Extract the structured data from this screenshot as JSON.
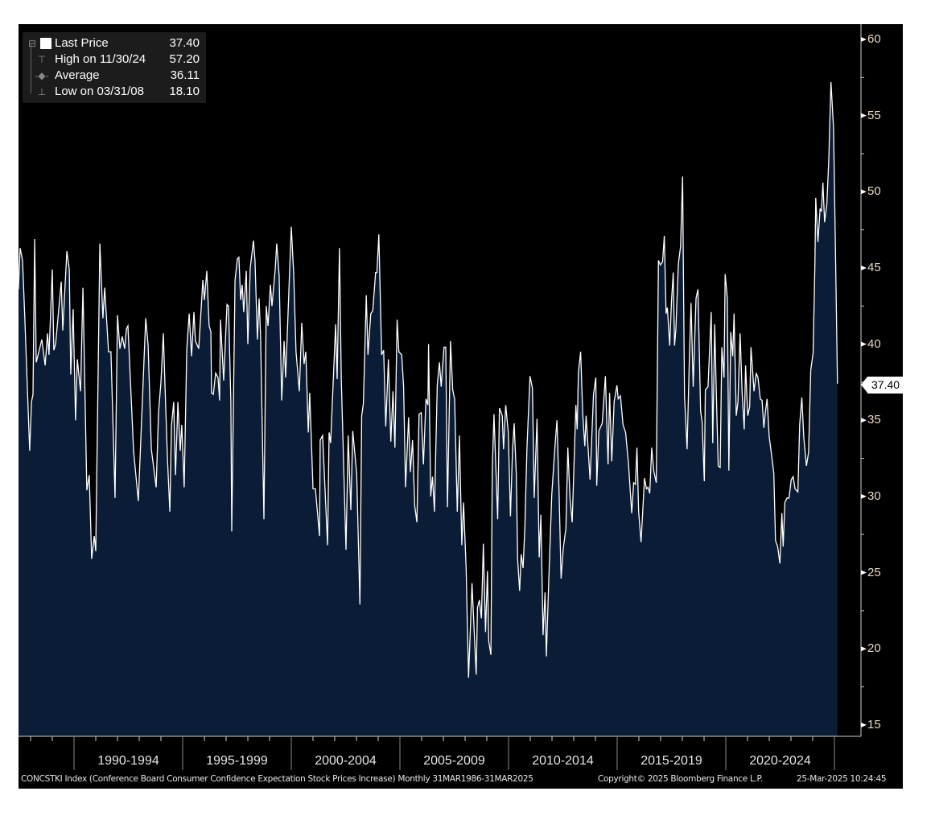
{
  "legend": {
    "last_label": "Last Price",
    "last_value": "37.40",
    "high_label": "High on 11/30/24",
    "high_value": "57.20",
    "avg_label": "Average",
    "avg_value": "36.11",
    "low_label": "Low on 03/31/08",
    "low_value": "18.10"
  },
  "last_tag": "37.40",
  "footer": {
    "description": "CONCSTKI Index (Conference Board Consumer Confidence Expectation Stock Prices Increase)  Monthly 31MAR1986-31MAR2025",
    "copyright": "Copyright© 2025 Bloomberg Finance L.P.",
    "timestamp": "25-Mar-2025 10:24:45"
  },
  "colors": {
    "area": "#0b1d36",
    "line": "#ffffff",
    "background": "#000000",
    "axis_text": "#e9d9c2"
  },
  "chart_data": {
    "type": "area",
    "title": "CONCSTKI Index",
    "ylim": [
      15,
      60
    ],
    "y_ticks": [
      "15",
      "20",
      "25",
      "30",
      "35",
      "40",
      "45",
      "50",
      "55",
      "60"
    ],
    "x_periods": [
      "1990-1994",
      "1995-1999",
      "2000-2004",
      "2005-2009",
      "2010-2014",
      "2015-2019",
      "2020-2024"
    ],
    "x_range": [
      1987.44,
      2025.2
    ],
    "points": [
      [
        1987.44,
        43.6
      ],
      [
        1987.52,
        46.3
      ],
      [
        1987.63,
        45.5
      ],
      [
        1987.74,
        41.5
      ],
      [
        1987.78,
        39.9
      ],
      [
        1987.93,
        34.1
      ],
      [
        1987.96,
        33.0
      ],
      [
        1988.04,
        36.2
      ],
      [
        1988.11,
        36.7
      ],
      [
        1988.19,
        46.9
      ],
      [
        1988.26,
        38.8
      ],
      [
        1988.52,
        40.3
      ],
      [
        1988.67,
        38.6
      ],
      [
        1988.78,
        40.7
      ],
      [
        1988.85,
        39.3
      ],
      [
        1989.0,
        44.9
      ],
      [
        1989.07,
        39.6
      ],
      [
        1989.15,
        40.0
      ],
      [
        1989.41,
        44.1
      ],
      [
        1989.48,
        40.9
      ],
      [
        1989.67,
        46.1
      ],
      [
        1989.78,
        44.9
      ],
      [
        1989.85,
        38.0
      ],
      [
        1989.96,
        42.3
      ],
      [
        1990.07,
        35.0
      ],
      [
        1990.15,
        39.0
      ],
      [
        1990.3,
        36.9
      ],
      [
        1990.41,
        43.7
      ],
      [
        1990.59,
        30.4
      ],
      [
        1990.7,
        31.4
      ],
      [
        1990.81,
        25.9
      ],
      [
        1990.93,
        27.4
      ],
      [
        1991.0,
        26.4
      ],
      [
        1991.19,
        46.6
      ],
      [
        1991.33,
        41.7
      ],
      [
        1991.41,
        43.7
      ],
      [
        1991.59,
        39.5
      ],
      [
        1991.7,
        39.5
      ],
      [
        1991.89,
        29.9
      ],
      [
        1992.0,
        41.9
      ],
      [
        1992.11,
        39.7
      ],
      [
        1992.22,
        40.5
      ],
      [
        1992.33,
        39.7
      ],
      [
        1992.41,
        41.0
      ],
      [
        1992.48,
        41.2
      ],
      [
        1992.74,
        33.0
      ],
      [
        1992.96,
        29.7
      ],
      [
        1993.19,
        37.8
      ],
      [
        1993.3,
        41.7
      ],
      [
        1993.41,
        39.9
      ],
      [
        1993.56,
        33.1
      ],
      [
        1993.78,
        30.6
      ],
      [
        1993.89,
        35.5
      ],
      [
        1994.0,
        37.5
      ],
      [
        1994.11,
        40.7
      ],
      [
        1994.19,
        37.2
      ],
      [
        1994.3,
        32.5
      ],
      [
        1994.41,
        29.0
      ],
      [
        1994.48,
        34.6
      ],
      [
        1994.59,
        36.2
      ],
      [
        1994.67,
        31.4
      ],
      [
        1994.78,
        36.2
      ],
      [
        1994.89,
        33.0
      ],
      [
        1994.96,
        34.7
      ],
      [
        1995.07,
        30.6
      ],
      [
        1995.19,
        39.6
      ],
      [
        1995.3,
        42.0
      ],
      [
        1995.41,
        39.2
      ],
      [
        1995.52,
        42.1
      ],
      [
        1995.59,
        40.2
      ],
      [
        1995.74,
        39.7
      ],
      [
        1995.93,
        44.2
      ],
      [
        1996.0,
        42.9
      ],
      [
        1996.11,
        44.8
      ],
      [
        1996.22,
        41.2
      ],
      [
        1996.3,
        40.8
      ],
      [
        1996.33,
        36.8
      ],
      [
        1996.41,
        36.7
      ],
      [
        1996.52,
        38.1
      ],
      [
        1996.63,
        37.8
      ],
      [
        1996.7,
        36.3
      ],
      [
        1996.74,
        41.6
      ],
      [
        1996.89,
        37.6
      ],
      [
        1997.04,
        42.6
      ],
      [
        1997.11,
        42.5
      ],
      [
        1997.22,
        36.2
      ],
      [
        1997.26,
        27.7
      ],
      [
        1997.41,
        44.2
      ],
      [
        1997.52,
        45.6
      ],
      [
        1997.59,
        45.7
      ],
      [
        1997.67,
        42.9
      ],
      [
        1997.74,
        43.9
      ],
      [
        1997.81,
        42.1
      ],
      [
        1997.93,
        44.8
      ],
      [
        1998.0,
        40.0
      ],
      [
        1998.11,
        45.0
      ],
      [
        1998.26,
        46.8
      ],
      [
        1998.33,
        45.5
      ],
      [
        1998.44,
        40.3
      ],
      [
        1998.52,
        43.0
      ],
      [
        1998.59,
        40.4
      ],
      [
        1998.74,
        28.5
      ],
      [
        1998.85,
        42.5
      ],
      [
        1998.93,
        41.2
      ],
      [
        1999.04,
        43.9
      ],
      [
        1999.11,
        42.5
      ],
      [
        1999.26,
        44.9
      ],
      [
        1999.33,
        46.6
      ],
      [
        1999.44,
        44.5
      ],
      [
        1999.56,
        36.3
      ],
      [
        1999.67,
        40.2
      ],
      [
        1999.74,
        37.8
      ],
      [
        2000.0,
        47.7
      ],
      [
        2000.11,
        44.6
      ],
      [
        2000.22,
        39.5
      ],
      [
        2000.37,
        36.9
      ],
      [
        2000.48,
        41.4
      ],
      [
        2000.59,
        38.7
      ],
      [
        2000.67,
        39.5
      ],
      [
        2000.78,
        34.2
      ],
      [
        2000.85,
        36.8
      ],
      [
        2001.0,
        30.5
      ],
      [
        2001.11,
        30.5
      ],
      [
        2001.3,
        27.4
      ],
      [
        2001.33,
        33.7
      ],
      [
        2001.44,
        34.0
      ],
      [
        2001.67,
        26.8
      ],
      [
        2001.74,
        34.2
      ],
      [
        2001.81,
        33.5
      ],
      [
        2002.04,
        41.3
      ],
      [
        2002.11,
        37.7
      ],
      [
        2002.22,
        46.3
      ],
      [
        2002.3,
        37.8
      ],
      [
        2002.52,
        26.5
      ],
      [
        2002.62,
        34.0
      ],
      [
        2002.74,
        29.1
      ],
      [
        2002.83,
        34.3
      ],
      [
        2003.01,
        31.5
      ],
      [
        2003.16,
        22.9
      ],
      [
        2003.24,
        35.3
      ],
      [
        2003.32,
        36.1
      ],
      [
        2003.45,
        43.2
      ],
      [
        2003.53,
        39.3
      ],
      [
        2003.66,
        42.0
      ],
      [
        2003.75,
        42.2
      ],
      [
        2003.88,
        44.7
      ],
      [
        2003.94,
        44.7
      ],
      [
        2004.03,
        47.2
      ],
      [
        2004.16,
        39.3
      ],
      [
        2004.25,
        39.6
      ],
      [
        2004.35,
        34.6
      ],
      [
        2004.47,
        39.0
      ],
      [
        2004.58,
        33.6
      ],
      [
        2004.68,
        36.9
      ],
      [
        2004.77,
        33.2
      ],
      [
        2004.87,
        41.6
      ],
      [
        2004.95,
        39.5
      ],
      [
        2005.08,
        39.3
      ],
      [
        2005.17,
        37.2
      ],
      [
        2005.26,
        30.6
      ],
      [
        2005.4,
        35.2
      ],
      [
        2005.48,
        31.6
      ],
      [
        2005.58,
        33.7
      ],
      [
        2005.68,
        29.4
      ],
      [
        2005.78,
        28.3
      ],
      [
        2005.88,
        35.4
      ],
      [
        2005.98,
        35.5
      ],
      [
        2006.08,
        32.1
      ],
      [
        2006.2,
        36.4
      ],
      [
        2006.29,
        36.0
      ],
      [
        2006.32,
        40.0
      ],
      [
        2006.42,
        30.0
      ],
      [
        2006.5,
        31.3
      ],
      [
        2006.59,
        29.0
      ],
      [
        2006.72,
        37.3
      ],
      [
        2006.82,
        38.8
      ],
      [
        2006.9,
        37.2
      ],
      [
        2007.03,
        39.8
      ],
      [
        2007.11,
        39.8
      ],
      [
        2007.19,
        29.3
      ],
      [
        2007.33,
        40.2
      ],
      [
        2007.43,
        37.0
      ],
      [
        2007.52,
        36.4
      ],
      [
        2007.64,
        29.0
      ],
      [
        2007.74,
        34.0
      ],
      [
        2007.85,
        26.8
      ],
      [
        2007.93,
        29.6
      ],
      [
        2008.05,
        25.3
      ],
      [
        2008.16,
        18.1
      ],
      [
        2008.32,
        24.3
      ],
      [
        2008.51,
        18.3
      ],
      [
        2008.57,
        22.7
      ],
      [
        2008.66,
        23.2
      ],
      [
        2008.75,
        22.0
      ],
      [
        2008.84,
        26.9
      ],
      [
        2008.94,
        21.1
      ],
      [
        2009.03,
        25.1
      ],
      [
        2009.09,
        20.5
      ],
      [
        2009.19,
        19.6
      ],
      [
        2009.25,
        31.8
      ],
      [
        2009.33,
        35.4
      ],
      [
        2009.5,
        28.5
      ],
      [
        2009.58,
        35.8
      ],
      [
        2009.71,
        35.3
      ],
      [
        2009.77,
        33.1
      ],
      [
        2009.87,
        36.0
      ],
      [
        2009.99,
        34.2
      ],
      [
        2010.09,
        28.7
      ],
      [
        2010.18,
        33.0
      ],
      [
        2010.26,
        34.8
      ],
      [
        2010.36,
        31.4
      ],
      [
        2010.42,
        25.9
      ],
      [
        2010.51,
        23.8
      ],
      [
        2010.58,
        26.2
      ],
      [
        2010.67,
        25.3
      ],
      [
        2010.75,
        28.0
      ],
      [
        2010.85,
        33.2
      ],
      [
        2010.99,
        37.9
      ],
      [
        2011.1,
        37.1
      ],
      [
        2011.18,
        29.9
      ],
      [
        2011.31,
        35.1
      ],
      [
        2011.41,
        26.0
      ],
      [
        2011.49,
        28.8
      ],
      [
        2011.59,
        20.9
      ],
      [
        2011.68,
        23.7
      ],
      [
        2011.74,
        19.5
      ],
      [
        2011.84,
        24.0
      ],
      [
        2011.99,
        30.1
      ],
      [
        2012.15,
        33.6
      ],
      [
        2012.23,
        35.0
      ],
      [
        2012.33,
        30.1
      ],
      [
        2012.42,
        24.6
      ],
      [
        2012.52,
        26.6
      ],
      [
        2012.64,
        27.9
      ],
      [
        2012.73,
        33.2
      ],
      [
        2012.83,
        29.9
      ],
      [
        2012.93,
        28.3
      ],
      [
        2013.1,
        36.0
      ],
      [
        2013.16,
        34.4
      ],
      [
        2013.22,
        38.2
      ],
      [
        2013.32,
        39.5
      ],
      [
        2013.42,
        35.3
      ],
      [
        2013.51,
        33.3
      ],
      [
        2013.57,
        35.3
      ],
      [
        2013.75,
        31.1
      ],
      [
        2013.91,
        36.7
      ],
      [
        2014.02,
        37.8
      ],
      [
        2014.06,
        30.7
      ],
      [
        2014.16,
        34.3
      ],
      [
        2014.31,
        34.8
      ],
      [
        2014.46,
        37.9
      ],
      [
        2014.58,
        32.1
      ],
      [
        2014.65,
        36.8
      ],
      [
        2014.75,
        32.3
      ],
      [
        2014.86,
        36.2
      ],
      [
        2014.99,
        37.3
      ],
      [
        2015.05,
        36.4
      ],
      [
        2015.15,
        36.6
      ],
      [
        2015.27,
        34.7
      ],
      [
        2015.39,
        34.2
      ],
      [
        2015.52,
        32.2
      ],
      [
        2015.67,
        28.9
      ],
      [
        2015.76,
        30.9
      ],
      [
        2015.84,
        30.8
      ],
      [
        2015.91,
        33.2
      ],
      [
        2015.99,
        29.0
      ],
      [
        2016.1,
        27.0
      ],
      [
        2016.26,
        31.2
      ],
      [
        2016.35,
        30.5
      ],
      [
        2016.42,
        30.6
      ],
      [
        2016.5,
        30.2
      ],
      [
        2016.59,
        33.2
      ],
      [
        2016.68,
        31.7
      ],
      [
        2016.8,
        30.9
      ],
      [
        2016.9,
        45.5
      ],
      [
        2016.99,
        45.2
      ],
      [
        2017.09,
        45.4
      ],
      [
        2017.17,
        47.1
      ],
      [
        2017.25,
        42.0
      ],
      [
        2017.31,
        42.4
      ],
      [
        2017.42,
        39.9
      ],
      [
        2017.5,
        42.8
      ],
      [
        2017.58,
        44.7
      ],
      [
        2017.64,
        39.9
      ],
      [
        2017.7,
        40.9
      ],
      [
        2017.82,
        45.3
      ],
      [
        2017.92,
        46.4
      ],
      [
        2018.01,
        51.0
      ],
      [
        2018.1,
        36.6
      ],
      [
        2018.22,
        33.1
      ],
      [
        2018.32,
        38.8
      ],
      [
        2018.4,
        42.7
      ],
      [
        2018.5,
        37.2
      ],
      [
        2018.63,
        43.0
      ],
      [
        2018.72,
        43.6
      ],
      [
        2018.84,
        35.6
      ],
      [
        2018.91,
        34.9
      ],
      [
        2019.01,
        31.0
      ],
      [
        2019.06,
        37.0
      ],
      [
        2019.18,
        37.2
      ],
      [
        2019.33,
        42.1
      ],
      [
        2019.4,
        33.5
      ],
      [
        2019.49,
        41.3
      ],
      [
        2019.58,
        35.8
      ],
      [
        2019.65,
        32.0
      ],
      [
        2019.74,
        31.9
      ],
      [
        2019.82,
        39.8
      ],
      [
        2019.92,
        37.8
      ],
      [
        2019.97,
        44.6
      ],
      [
        2020.07,
        43.0
      ],
      [
        2020.14,
        31.7
      ],
      [
        2020.23,
        40.8
      ],
      [
        2020.32,
        39.2
      ],
      [
        2020.38,
        42.0
      ],
      [
        2020.48,
        35.3
      ],
      [
        2020.56,
        36.2
      ],
      [
        2020.66,
        40.7
      ],
      [
        2020.75,
        36.8
      ],
      [
        2020.85,
        34.4
      ],
      [
        2020.91,
        38.6
      ],
      [
        2021.01,
        35.3
      ],
      [
        2021.1,
        35.9
      ],
      [
        2021.16,
        39.8
      ],
      [
        2021.3,
        36.9
      ],
      [
        2021.4,
        38.1
      ],
      [
        2021.48,
        37.8
      ],
      [
        2021.59,
        36.4
      ],
      [
        2021.67,
        36.3
      ],
      [
        2021.75,
        34.5
      ],
      [
        2021.82,
        35.5
      ],
      [
        2021.9,
        36.4
      ],
      [
        2022.0,
        33.9
      ],
      [
        2022.12,
        32.6
      ],
      [
        2022.21,
        31.5
      ],
      [
        2022.29,
        27.1
      ],
      [
        2022.39,
        26.7
      ],
      [
        2022.49,
        25.6
      ],
      [
        2022.58,
        28.9
      ],
      [
        2022.64,
        26.7
      ],
      [
        2022.72,
        29.6
      ],
      [
        2022.82,
        29.9
      ],
      [
        2022.91,
        29.9
      ],
      [
        2023.01,
        31.1
      ],
      [
        2023.1,
        31.3
      ],
      [
        2023.19,
        30.5
      ],
      [
        2023.32,
        30.3
      ],
      [
        2023.4,
        34.7
      ],
      [
        2023.5,
        36.5
      ],
      [
        2023.59,
        33.9
      ],
      [
        2023.71,
        32.0
      ],
      [
        2023.81,
        32.9
      ],
      [
        2023.91,
        38.3
      ],
      [
        2024.02,
        39.4
      ],
      [
        2024.1,
        45.1
      ],
      [
        2024.14,
        49.6
      ],
      [
        2024.24,
        46.7
      ],
      [
        2024.34,
        48.9
      ],
      [
        2024.4,
        48.7
      ],
      [
        2024.47,
        50.6
      ],
      [
        2024.55,
        48.0
      ],
      [
        2024.65,
        49.2
      ],
      [
        2024.74,
        52.1
      ],
      [
        2024.84,
        57.2
      ],
      [
        2024.96,
        54.2
      ],
      [
        2025.06,
        45.1
      ],
      [
        2025.14,
        37.4
      ]
    ]
  }
}
